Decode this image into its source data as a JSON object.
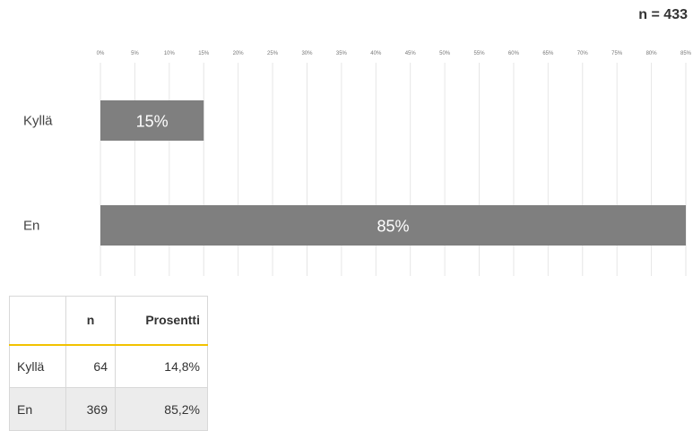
{
  "n_total_label": "n = 433",
  "chart_data": {
    "type": "bar",
    "orientation": "horizontal",
    "categories": [
      "Kyllä",
      "En"
    ],
    "values": [
      15,
      85
    ],
    "value_labels": [
      "15%",
      "85%"
    ],
    "x_ticks": [
      "0%",
      "5%",
      "10%",
      "15%",
      "20%",
      "25%",
      "30%",
      "35%",
      "40%",
      "45%",
      "50%",
      "55%",
      "60%",
      "65%",
      "70%",
      "75%",
      "80%",
      "85%"
    ],
    "xlim": [
      0,
      85
    ],
    "grid": true,
    "bar_color": "#7f7f7f"
  },
  "table": {
    "headers": [
      "",
      "n",
      "Prosentti"
    ],
    "rows": [
      {
        "category": "Kyllä",
        "n": "64",
        "percent": "14,8%"
      },
      {
        "category": "En",
        "n": "369",
        "percent": "85,2%"
      }
    ]
  }
}
